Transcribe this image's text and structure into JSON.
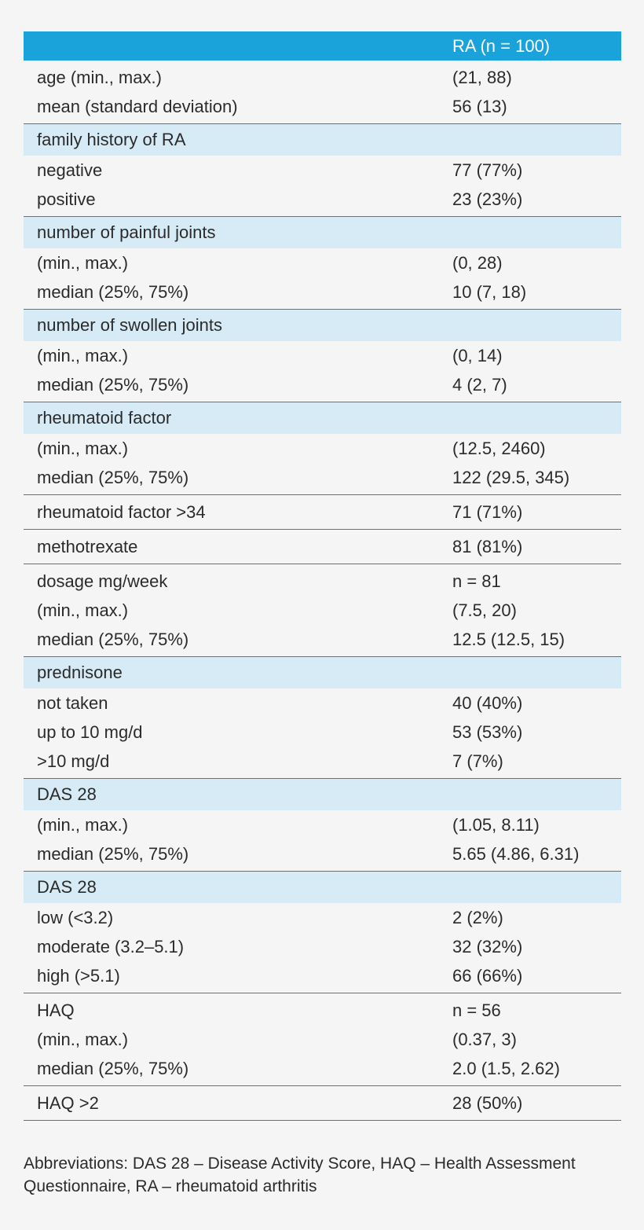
{
  "header": {
    "column_label": "RA (n = 100)"
  },
  "sections": [
    {
      "rows": [
        {
          "label": "age (min., max.)",
          "value": "(21, 88)"
        },
        {
          "label": "mean (standard deviation)",
          "value": "56 (13)"
        }
      ]
    },
    {
      "title": "family history of RA",
      "rows": [
        {
          "label": "negative",
          "value": "77 (77%)"
        },
        {
          "label": "positive",
          "value": "23 (23%)"
        }
      ]
    },
    {
      "title": "number of painful joints",
      "rows": [
        {
          "label": "(min., max.)",
          "value": "(0, 28)"
        },
        {
          "label": "median (25%, 75%)",
          "value": "10 (7, 18)"
        }
      ]
    },
    {
      "title": "number of swollen joints",
      "rows": [
        {
          "label": "(min., max.)",
          "value": "(0, 14)"
        },
        {
          "label": "median (25%, 75%)",
          "value": "4 (2, 7)"
        }
      ]
    },
    {
      "title": "rheumatoid factor",
      "rows": [
        {
          "label": "(min., max.)",
          "value": "(12.5, 2460)"
        },
        {
          "label": "median (25%, 75%)",
          "value": "122 (29.5, 345)"
        }
      ]
    },
    {
      "rows": [
        {
          "label": "rheumatoid factor >34",
          "value": "71 (71%)"
        }
      ]
    },
    {
      "rows": [
        {
          "label": "methotrexate",
          "value": "81 (81%)"
        }
      ]
    },
    {
      "rows": [
        {
          "label": "dosage mg/week",
          "value": "n = 81"
        },
        {
          "label": "(min., max.)",
          "value": "(7.5, 20)"
        },
        {
          "label": "median (25%, 75%)",
          "value": "12.5 (12.5, 15)"
        }
      ]
    },
    {
      "title": "prednisone",
      "rows": [
        {
          "label": "not taken",
          "value": "40 (40%)"
        },
        {
          "label": "up to 10 mg/d",
          "value": "53 (53%)"
        },
        {
          "label": ">10 mg/d",
          "value": "7 (7%)"
        }
      ]
    },
    {
      "title": "DAS 28",
      "rows": [
        {
          "label": "(min., max.)",
          "value": "(1.05, 8.11)"
        },
        {
          "label": "median (25%, 75%)",
          "value": "5.65 (4.86, 6.31)"
        }
      ]
    },
    {
      "title": "DAS 28",
      "rows": [
        {
          "label": "low (<3.2)",
          "value": "2 (2%)"
        },
        {
          "label": "moderate (3.2–5.1)",
          "value": "32 (32%)"
        },
        {
          "label": "high (>5.1)",
          "value": "66 (66%)"
        }
      ]
    },
    {
      "rows": [
        {
          "label": "HAQ",
          "value": "n = 56"
        },
        {
          "label": "(min., max.)",
          "value": "(0.37, 3)"
        },
        {
          "label": "median (25%, 75%)",
          "value": "2.0 (1.5, 2.62)"
        }
      ]
    },
    {
      "rows": [
        {
          "label": "HAQ >2",
          "value": "28 (50%)"
        }
      ]
    }
  ],
  "footnote": "Abbreviations: DAS 28 – Disease Activity Score, HAQ – Health Assessment Questionnaire, RA – rheumatoid arthritis",
  "colors": {
    "header_bg": "#1aa3da",
    "section_title_bg": "#d6ebf6",
    "page_bg": "#f5f5f5",
    "rule": "#6f6f6f"
  }
}
